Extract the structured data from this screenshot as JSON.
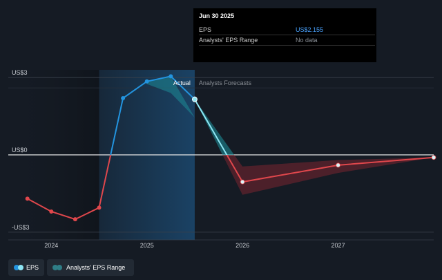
{
  "tooltip": {
    "date": "Jun 30 2025",
    "rows": [
      {
        "label": "EPS",
        "value": "US$2.155",
        "value_color": "#4aa3ff"
      },
      {
        "label": "Analysts' EPS Range",
        "value": "No data",
        "value_color": "#8a8f96"
      }
    ]
  },
  "sections": {
    "actual": "Actual",
    "forecast": "Analysts Forecasts"
  },
  "legend": [
    {
      "label": "EPS",
      "colors": [
        "#2394df",
        "#8ee6f4"
      ]
    },
    {
      "label": "Analysts' EPS Range",
      "colors": [
        "#2f7d86",
        "#2f7d86"
      ]
    }
  ],
  "colors": {
    "positive": "#2394df",
    "negative": "#e0474c",
    "forecast": "#8ee6f4",
    "band_positive": "#1d8a95",
    "band_negative": "#7a2430"
  },
  "chart_data": {
    "type": "line",
    "y_tick_labels": [
      "US$3",
      "US$0",
      "-US$3"
    ],
    "y_ticks": [
      3,
      0,
      -3
    ],
    "x_tick_labels": [
      "2024",
      "2025",
      "2026",
      "2027"
    ],
    "x_ticks": [
      2024,
      2025,
      2026,
      2027
    ],
    "xlim": [
      2023.55,
      2028.0
    ],
    "ylim": [
      -3.3,
      3.3
    ],
    "actual_end": 2025.5,
    "highlight_start": 2024.5,
    "series": [
      {
        "name": "EPS",
        "values": [
          {
            "x": 2023.75,
            "y": -1.7
          },
          {
            "x": 2024.0,
            "y": -2.2
          },
          {
            "x": 2024.25,
            "y": -2.5
          },
          {
            "x": 2024.5,
            "y": -2.05
          },
          {
            "x": 2024.75,
            "y": 2.2
          },
          {
            "x": 2025.0,
            "y": 2.85
          },
          {
            "x": 2025.25,
            "y": 3.05
          },
          {
            "x": 2025.5,
            "y": 2.155
          }
        ]
      },
      {
        "name": "Analysts' EPS",
        "values": [
          {
            "x": 2025.5,
            "y": 2.155
          },
          {
            "x": 2026.0,
            "y": -1.05
          },
          {
            "x": 2027.0,
            "y": -0.4
          },
          {
            "x": 2028.0,
            "y": -0.1
          }
        ]
      }
    ],
    "range": {
      "high": [
        {
          "x": 2025.5,
          "y": 2.155
        },
        {
          "x": 2026.0,
          "y": -0.45
        },
        {
          "x": 2027.0,
          "y": -0.2
        },
        {
          "x": 2028.0,
          "y": -0.1
        }
      ],
      "low": [
        {
          "x": 2025.5,
          "y": 2.155
        },
        {
          "x": 2026.0,
          "y": -1.55
        },
        {
          "x": 2027.0,
          "y": -0.7
        },
        {
          "x": 2028.0,
          "y": -0.1
        }
      ],
      "early_high": [
        {
          "x": 2025.0,
          "y": 2.75
        },
        {
          "x": 2025.25,
          "y": 2.4
        },
        {
          "x": 2025.5,
          "y": 1.45
        }
      ]
    }
  }
}
